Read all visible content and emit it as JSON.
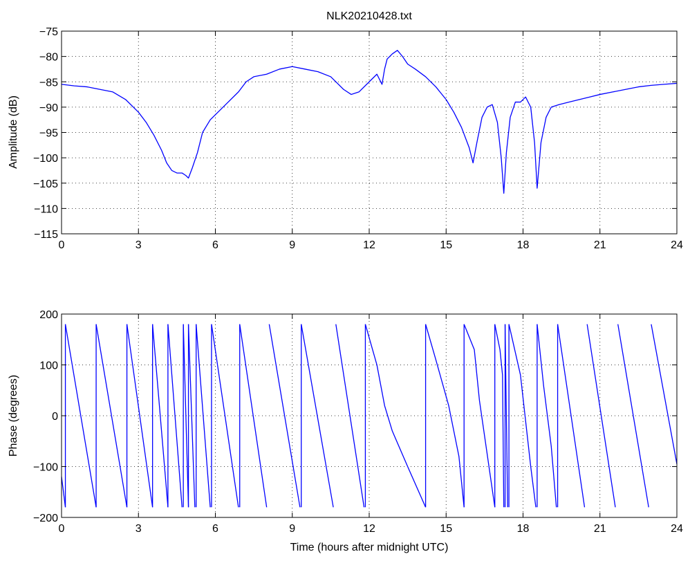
{
  "page_title": "NLK20210428.txt",
  "colors": {
    "series": "#0000ff",
    "axes": "#000000",
    "background": "#ffffff"
  },
  "chart_data": [
    {
      "type": "line",
      "title": "NLK20210428.txt",
      "xlabel": "",
      "ylabel": "Amplitude (dB)",
      "xlim": [
        0,
        24
      ],
      "ylim": [
        -115,
        -75
      ],
      "xticks": [
        0,
        3,
        6,
        9,
        12,
        15,
        18,
        21,
        24
      ],
      "yticks": [
        -75,
        -80,
        -85,
        -90,
        -95,
        -100,
        -105,
        -110,
        -115
      ],
      "xtick_labels": [
        "0",
        "3",
        "6",
        "9",
        "12",
        "15",
        "18",
        "21",
        "24"
      ],
      "ytick_labels": [
        "−75",
        "−80",
        "−85",
        "−90",
        "−95",
        "−100",
        "−105",
        "−110",
        "−115"
      ],
      "grid": true,
      "x": [
        0,
        0.5,
        1.0,
        1.5,
        2.0,
        2.5,
        3.0,
        3.3,
        3.6,
        3.9,
        4.1,
        4.3,
        4.5,
        4.7,
        4.85,
        4.95,
        5.1,
        5.3,
        5.5,
        5.8,
        6.1,
        6.5,
        6.9,
        7.2,
        7.5,
        8.0,
        8.5,
        9.0,
        9.5,
        10.0,
        10.5,
        11.0,
        11.3,
        11.6,
        12.0,
        12.3,
        12.5,
        12.6,
        12.7,
        12.9,
        13.1,
        13.3,
        13.5,
        13.8,
        14.2,
        14.6,
        15.0,
        15.3,
        15.6,
        15.9,
        16.05,
        16.2,
        16.4,
        16.6,
        16.8,
        17.0,
        17.15,
        17.25,
        17.35,
        17.5,
        17.7,
        17.9,
        18.1,
        18.3,
        18.45,
        18.55,
        18.7,
        18.9,
        19.1,
        19.4,
        19.8,
        20.2,
        20.6,
        21.0,
        21.5,
        22.0,
        22.5,
        23.0,
        23.5,
        24.0
      ],
      "series": [
        {
          "name": "",
          "values": [
            -85.5,
            -85.8,
            -86.0,
            -86.5,
            -87.0,
            -88.5,
            -91.0,
            -93.0,
            -95.5,
            -98.5,
            -101.0,
            -102.5,
            -103.0,
            -103.0,
            -103.5,
            -104.0,
            -102.0,
            -99.0,
            -95.0,
            -92.5,
            -91.0,
            -89.0,
            -87.0,
            -85.0,
            -84.0,
            -83.5,
            -82.5,
            -82.0,
            -82.5,
            -83.0,
            -84.0,
            -86.5,
            -87.5,
            -87.0,
            -85.0,
            -83.5,
            -85.5,
            -82.5,
            -80.5,
            -79.5,
            -78.8,
            -80.0,
            -81.5,
            -82.5,
            -84.0,
            -86.0,
            -88.5,
            -91.0,
            -94.0,
            -98.0,
            -101.0,
            -97.0,
            -92.0,
            -90.0,
            -89.5,
            -93.0,
            -100.0,
            -107.0,
            -99.0,
            -92.0,
            -89.0,
            -89.0,
            -88.0,
            -90.0,
            -97.0,
            -106.0,
            -97.0,
            -92.0,
            -90.0,
            -89.5,
            -89.0,
            -88.5,
            -88.0,
            -87.5,
            -87.0,
            -86.5,
            -86.0,
            -85.7,
            -85.5,
            -85.3
          ]
        }
      ]
    },
    {
      "type": "line",
      "title": "",
      "xlabel": "Time (hours after midnight UTC)",
      "ylabel": "Phase (degrees)",
      "xlim": [
        0,
        24
      ],
      "ylim": [
        -200,
        200
      ],
      "xticks": [
        0,
        3,
        6,
        9,
        12,
        15,
        18,
        21,
        24
      ],
      "yticks": [
        200,
        100,
        0,
        -100,
        -200
      ],
      "xtick_labels": [
        "0",
        "3",
        "6",
        "9",
        "12",
        "15",
        "18",
        "21",
        "24"
      ],
      "ytick_labels": [
        "200",
        "100",
        "0",
        "−100",
        "−200"
      ],
      "grid": true,
      "series": [
        {
          "name": "",
          "values_note": "",
          "segments": [
            [
              [
                0.0,
                -120
              ],
              [
                0.15,
                -180
              ]
            ],
            [
              [
                0.15,
                180
              ],
              [
                1.35,
                -180
              ]
            ],
            [
              [
                1.35,
                180
              ],
              [
                2.55,
                -180
              ]
            ],
            [
              [
                2.55,
                180
              ],
              [
                3.55,
                -180
              ]
            ],
            [
              [
                3.55,
                180
              ],
              [
                4.15,
                -180
              ]
            ],
            [
              [
                4.15,
                180
              ],
              [
                4.7,
                -180
              ]
            ],
            [
              [
                4.75,
                180
              ],
              [
                4.95,
                -180
              ]
            ],
            [
              [
                4.95,
                180
              ],
              [
                5.2,
                -180
              ]
            ],
            [
              [
                5.25,
                180
              ],
              [
                5.8,
                -180
              ]
            ],
            [
              [
                5.85,
                180
              ],
              [
                6.9,
                -180
              ]
            ],
            [
              [
                6.95,
                180
              ],
              [
                8.0,
                -180
              ]
            ],
            [
              [
                8.1,
                180
              ],
              [
                9.3,
                -180
              ]
            ],
            [
              [
                9.35,
                180
              ],
              [
                10.6,
                -180
              ]
            ],
            [
              [
                10.7,
                180
              ],
              [
                11.8,
                -180
              ]
            ],
            [
              [
                11.85,
                180
              ],
              [
                12.3,
                100
              ],
              [
                12.6,
                20
              ],
              [
                12.9,
                -30
              ],
              [
                13.5,
                -100
              ],
              [
                14.2,
                -180
              ]
            ],
            [
              [
                14.2,
                180
              ],
              [
                14.6,
                110
              ],
              [
                15.1,
                20
              ],
              [
                15.5,
                -80
              ],
              [
                15.7,
                -180
              ]
            ],
            [
              [
                15.7,
                180
              ],
              [
                16.1,
                130
              ],
              [
                16.3,
                30
              ],
              [
                16.5,
                -40
              ],
              [
                16.7,
                -110
              ],
              [
                16.9,
                -180
              ]
            ],
            [
              [
                16.9,
                180
              ],
              [
                17.1,
                130
              ],
              [
                17.2,
                80
              ],
              [
                17.25,
                -180
              ]
            ],
            [
              [
                17.3,
                180
              ],
              [
                17.4,
                -180
              ]
            ],
            [
              [
                17.45,
                180
              ],
              [
                17.9,
                80
              ],
              [
                18.3,
                -100
              ],
              [
                18.5,
                -180
              ]
            ],
            [
              [
                18.55,
                180
              ],
              [
                18.8,
                60
              ],
              [
                19.1,
                -60
              ],
              [
                19.3,
                -180
              ]
            ],
            [
              [
                19.35,
                180
              ],
              [
                20.4,
                -180
              ]
            ],
            [
              [
                20.5,
                180
              ],
              [
                21.6,
                -180
              ]
            ],
            [
              [
                21.7,
                180
              ],
              [
                22.9,
                -180
              ]
            ],
            [
              [
                23.0,
                180
              ],
              [
                24.0,
                -95
              ]
            ]
          ]
        }
      ]
    }
  ]
}
